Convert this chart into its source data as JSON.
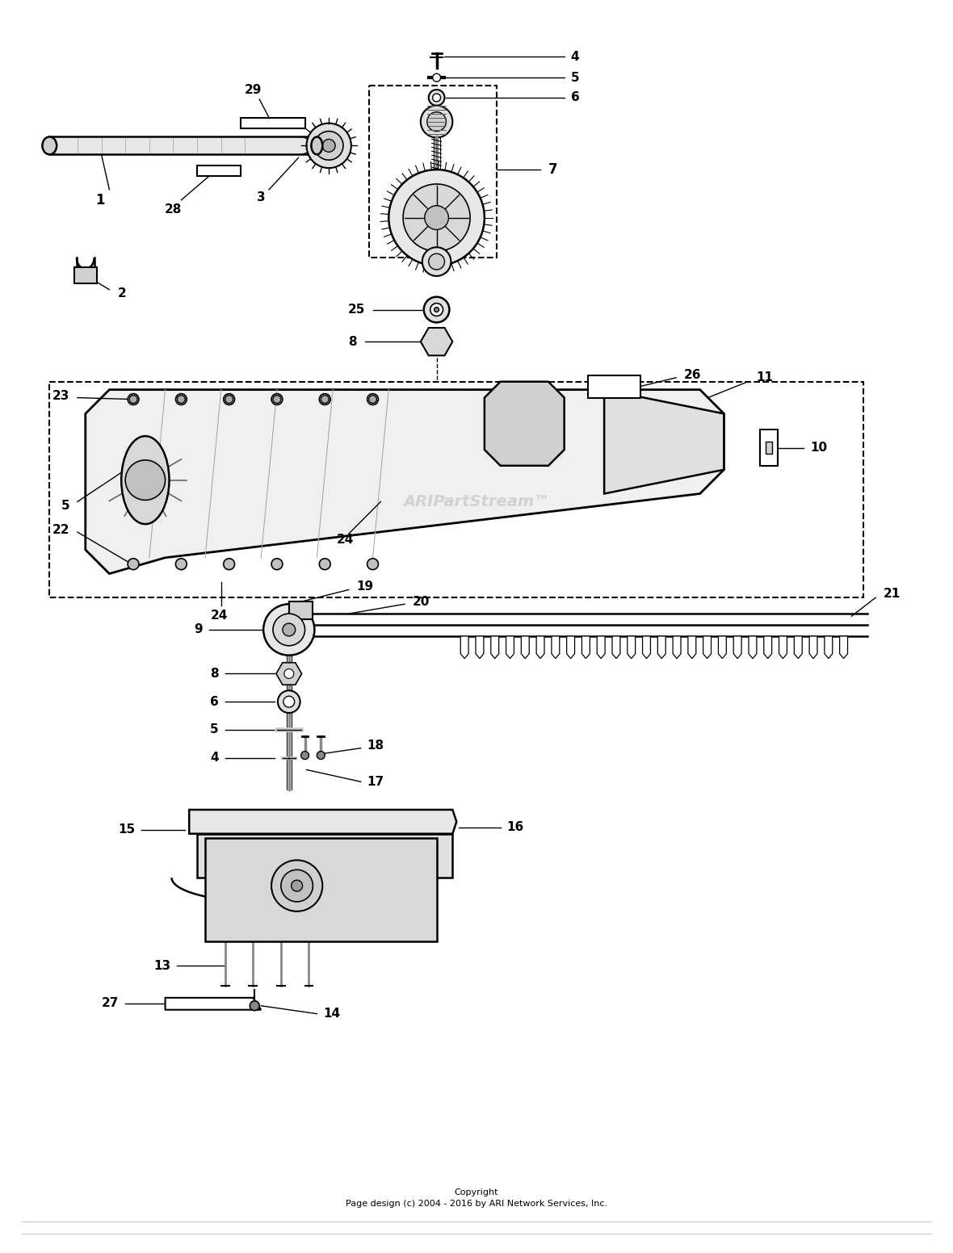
{
  "bg_color": "#ffffff",
  "line_color": "#000000",
  "copyright": "Copyright\nPage design (c) 2004 - 2016 by ARI Network Services, Inc.",
  "watermark": "ARIPartStream™",
  "fig_width": 11.8,
  "fig_height": 15.52,
  "dpi": 100
}
